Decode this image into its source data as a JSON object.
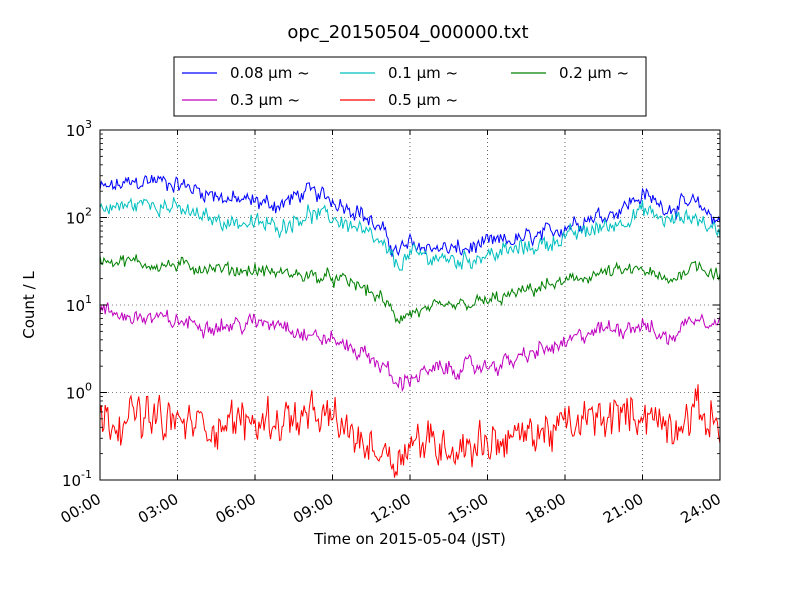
{
  "chart_data": {
    "type": "line",
    "title": "opc_20150504_000000.txt",
    "xlabel": "Time on 2015-05-04 (JST)",
    "ylabel": "Count / L",
    "yscale": "log",
    "ylim": [
      0.1,
      1000
    ],
    "xlim": [
      "00:00",
      "24:00"
    ],
    "grid": true,
    "legend_position": "top",
    "x_ticks": [
      "00:00",
      "03:00",
      "06:00",
      "09:00",
      "12:00",
      "15:00",
      "18:00",
      "21:00",
      "24:00"
    ],
    "y_ticks": [
      {
        "base": "10",
        "exp": "-1"
      },
      {
        "base": "10",
        "exp": "0"
      },
      {
        "base": "10",
        "exp": "1"
      },
      {
        "base": "10",
        "exp": "2"
      },
      {
        "base": "10",
        "exp": "3"
      }
    ],
    "x_hours": [
      0,
      1,
      2,
      3,
      4,
      5,
      6,
      7,
      8,
      9,
      10,
      11,
      11.5,
      12,
      13,
      14,
      15,
      16,
      17,
      18,
      19,
      20,
      21,
      22,
      23,
      24
    ],
    "series": [
      {
        "name": "0.08 μm ~",
        "color": "#0000ff",
        "noise": 0.05,
        "values": [
          210,
          240,
          270,
          240,
          200,
          160,
          150,
          140,
          200,
          160,
          120,
          65,
          40,
          50,
          45,
          42,
          50,
          55,
          60,
          80,
          100,
          120,
          180,
          130,
          145,
          90
        ]
      },
      {
        "name": "0.1 μm ~",
        "color": "#00bfbf",
        "noise": 0.05,
        "values": [
          125,
          135,
          150,
          125,
          100,
          90,
          85,
          80,
          110,
          100,
          75,
          45,
          28,
          38,
          35,
          32,
          38,
          42,
          48,
          60,
          72,
          85,
          120,
          90,
          105,
          65
        ]
      },
      {
        "name": "0.2 μm ~",
        "color": "#008000",
        "noise": 0.04,
        "values": [
          33,
          32,
          29,
          28,
          27,
          25,
          25,
          23,
          22,
          20,
          17,
          11,
          7,
          8,
          9,
          10,
          11,
          13,
          16,
          18,
          22,
          24,
          25,
          18,
          30,
          22
        ]
      },
      {
        "name": "0.3 μm ~",
        "color": "#bf00bf",
        "noise": 0.05,
        "values": [
          8.5,
          7.5,
          7.0,
          6.5,
          6.0,
          5.8,
          6.2,
          6.5,
          4.5,
          4.0,
          3.0,
          2.0,
          1.2,
          1.5,
          1.8,
          1.9,
          2.0,
          2.3,
          3.0,
          3.5,
          5.0,
          5.5,
          6.0,
          4.0,
          7.5,
          6.5
        ]
      },
      {
        "name": "0.5 μm ~",
        "color": "#ff0000",
        "noise": 0.12,
        "values": [
          0.5,
          0.55,
          0.5,
          0.45,
          0.42,
          0.45,
          0.48,
          0.5,
          0.5,
          0.5,
          0.28,
          0.22,
          0.18,
          0.28,
          0.26,
          0.24,
          0.28,
          0.3,
          0.35,
          0.4,
          0.48,
          0.55,
          0.6,
          0.4,
          0.6,
          0.45
        ]
      }
    ]
  }
}
